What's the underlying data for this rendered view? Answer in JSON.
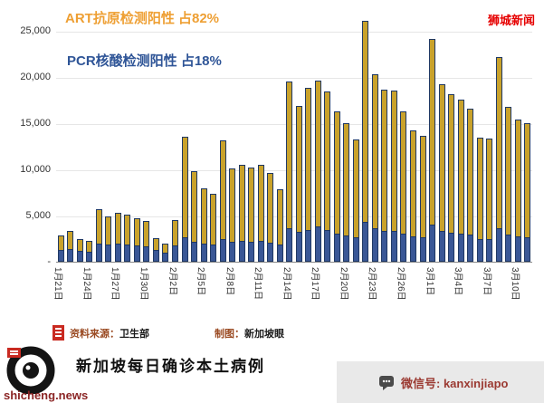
{
  "annotations": {
    "art": "ART抗原检测阳性 占82%",
    "pcr": "PCR核酸检测阳性 占18%",
    "watermark": "狮城新闻"
  },
  "footer": {
    "source_label": "资料来源：",
    "source_value": "卫生部",
    "credit_label": "制图：",
    "credit_value": "新加坡眼",
    "title": "新加坡每日确诊本土病例",
    "site": "shicheng.news",
    "wechat": "微信号: kanxinjiapo"
  },
  "colors": {
    "art": "#C9A22B",
    "pcr": "#3A5796",
    "art_text": "#EE9F33",
    "pcr_text": "#2F5597",
    "red": "#E60000",
    "maroon": "#9B3A32",
    "bar_outline": "#1F3864"
  },
  "chart_data": {
    "type": "bar",
    "stacked": true,
    "title": "新加坡每日确诊本土病例",
    "xlabel": "",
    "ylabel": "",
    "ylim": [
      0,
      25000
    ],
    "grid": true,
    "legend_position": "none",
    "xtick_every": 3,
    "yticks": [
      {
        "label": "25,000",
        "value": 25000
      },
      {
        "label": "20,000",
        "value": 20000
      },
      {
        "label": "15,000",
        "value": 15000
      },
      {
        "label": "10,000",
        "value": 10000
      },
      {
        "label": "5,000",
        "value": 5000
      },
      {
        "label": "-",
        "value": 0
      }
    ],
    "categories": [
      "1月21日",
      "1月22日",
      "1月23日",
      "1月24日",
      "1月25日",
      "1月26日",
      "1月27日",
      "1月28日",
      "1月29日",
      "1月30日",
      "1月31日",
      "2月1日",
      "2月2日",
      "2月3日",
      "2月4日",
      "2月5日",
      "2月6日",
      "2月7日",
      "2月8日",
      "2月9日",
      "2月10日",
      "2月11日",
      "2月12日",
      "2月13日",
      "2月14日",
      "2月15日",
      "2月16日",
      "2月17日",
      "2月18日",
      "2月19日",
      "2月20日",
      "2月21日",
      "2月22日",
      "2月23日",
      "2月24日",
      "2月25日",
      "2月26日",
      "2月27日",
      "2月28日",
      "3月1日",
      "3月2日",
      "3月3日",
      "3月4日",
      "3月5日",
      "3月6日",
      "3月7日",
      "3月8日",
      "3月9日",
      "3月10日",
      "3月11日"
    ],
    "series": [
      {
        "name": "PCR核酸检测阳性",
        "share_label": "占18%",
        "color": "#3A5796",
        "values": [
          1300,
          1400,
          1200,
          1100,
          2000,
          1900,
          2000,
          1900,
          1800,
          1700,
          1300,
          1000,
          1800,
          2600,
          2200,
          2000,
          1900,
          2500,
          2200,
          2300,
          2200,
          2300,
          2100,
          1900,
          3600,
          3200,
          3400,
          3800,
          3400,
          3000,
          2800,
          2600,
          4300,
          3600,
          3300,
          3300,
          3000,
          2700,
          2600,
          4000,
          3300,
          3100,
          3000,
          2900,
          2500,
          2500,
          3600,
          2900,
          2700,
          2600
        ]
      },
      {
        "name": "ART抗原检测阳性",
        "share_label": "占82%",
        "color": "#C9A22B",
        "values": [
          1500,
          1900,
          1300,
          1200,
          3700,
          3000,
          3300,
          3200,
          2900,
          2700,
          1300,
          1000,
          2700,
          10900,
          7600,
          5900,
          5500,
          10600,
          7900,
          8200,
          8000,
          8200,
          7500,
          5900,
          15900,
          13700,
          15400,
          15800,
          15000,
          13300,
          12200,
          10600,
          21800,
          16700,
          15300,
          15200,
          13300,
          11500,
          11000,
          20100,
          15900,
          15000,
          14600,
          13700,
          10900,
          10800,
          18600,
          13900,
          12700,
          12400
        ]
      }
    ]
  }
}
